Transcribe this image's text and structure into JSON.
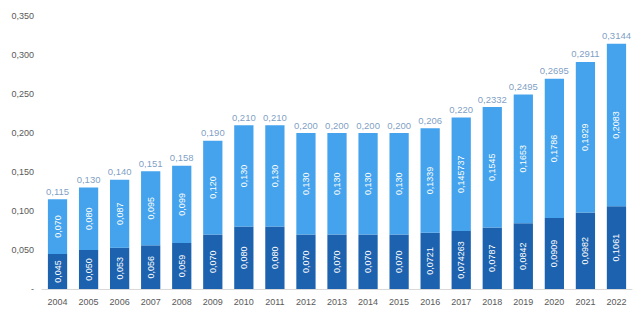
{
  "chart_data": {
    "type": "bar",
    "stacked": true,
    "data_labels": true,
    "grid": false,
    "categories": [
      "2004",
      "2005",
      "2006",
      "2007",
      "2008",
      "2009",
      "2010",
      "2011",
      "2012",
      "2013",
      "2014",
      "2015",
      "2016",
      "2017",
      "2018",
      "2019",
      "2020",
      "2021",
      "2022"
    ],
    "series": [
      {
        "color": "#1d62ae",
        "values": [
          0.045,
          0.05,
          0.053,
          0.056,
          0.059,
          0.07,
          0.08,
          0.08,
          0.07,
          0.07,
          0.07,
          0.07,
          0.0721,
          0.074263,
          0.0787,
          0.0842,
          0.0909,
          0.0982,
          0.1061
        ],
        "value_labels": [
          "0,045",
          "0,050",
          "0,053",
          "0,056",
          "0,059",
          "0,070",
          "0,080",
          "0,080",
          "0,070",
          "0,070",
          "0,070",
          "0,070",
          "0,0721",
          "0,074263",
          "0,0787",
          "0,0842",
          "0,0909",
          "0,0982",
          "0,1061"
        ]
      },
      {
        "color": "#44a3ec",
        "values": [
          0.07,
          0.08,
          0.087,
          0.095,
          0.099,
          0.12,
          0.13,
          0.13,
          0.13,
          0.13,
          0.13,
          0.13,
          0.1339,
          0.145737,
          0.1545,
          0.1653,
          0.1786,
          0.1929,
          0.2083
        ],
        "value_labels": [
          "0,070",
          "0,080",
          "0,087",
          "0,095",
          "0,099",
          "0,120",
          "0,130",
          "0,130",
          "0,130",
          "0,130",
          "0,130",
          "0,130",
          "0,1339",
          "0,145737",
          "0,1545",
          "0,1653",
          "0,1786",
          "0,1929",
          "0,2083"
        ]
      }
    ],
    "totals": [
      0.115,
      0.13,
      0.14,
      0.151,
      0.158,
      0.19,
      0.21,
      0.21,
      0.2,
      0.2,
      0.2,
      0.2,
      0.206,
      0.22,
      0.2332,
      0.2495,
      0.2695,
      0.2911,
      0.3144
    ],
    "total_labels": [
      "0,115",
      "0,130",
      "0,140",
      "0,151",
      "0,158",
      "0,190",
      "0,210",
      "0,210",
      "0,200",
      "0,200",
      "0,200",
      "0,200",
      "0,206",
      "0,220",
      "0,2332",
      "0,2495",
      "0,2695",
      "0,2911",
      "0,3144"
    ],
    "ylim": [
      0,
      0.35
    ],
    "yticks": [
      {
        "value": 0,
        "label": "-"
      },
      {
        "value": 0.05,
        "label": "0,050"
      },
      {
        "value": 0.1,
        "label": "0,100"
      },
      {
        "value": 0.15,
        "label": "0,150"
      },
      {
        "value": 0.2,
        "label": "0,200"
      },
      {
        "value": 0.25,
        "label": "0,250"
      },
      {
        "value": 0.3,
        "label": "0,300"
      },
      {
        "value": 0.35,
        "label": "0,350"
      }
    ]
  }
}
